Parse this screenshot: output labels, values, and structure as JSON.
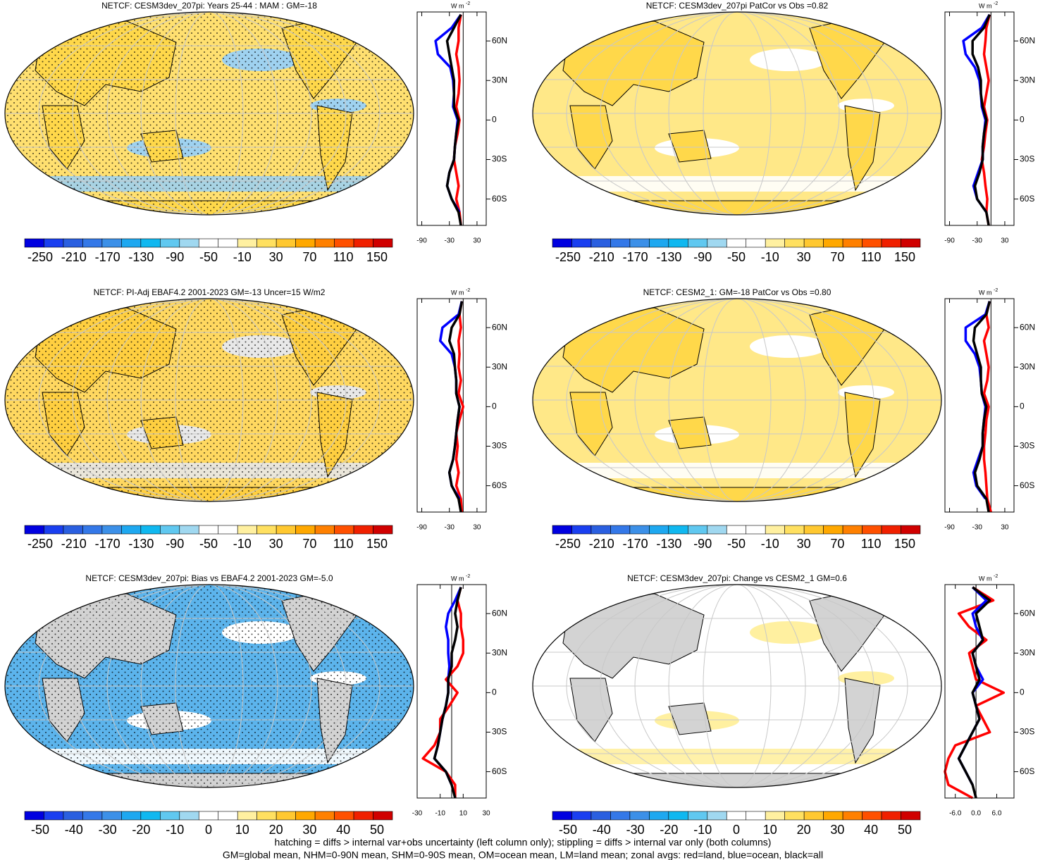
{
  "chart_data": [
    {
      "type": "zonal",
      "title": "NETCF: CESM3dev_207pi: Years 25-44 : MAM : GM=-18",
      "units": [
        "W m",
        "-2"
      ],
      "colorbar": {
        "ticks": [
          -250,
          -210,
          -170,
          -130,
          -90,
          -50,
          -10,
          30,
          70,
          110,
          150
        ],
        "colors": [
          "#0000e0",
          "#1a3ff0",
          "#2a5fe0",
          "#3478e8",
          "#3c90e8",
          "#1ea8f0",
          "#10b8f0",
          "#60c8f0",
          "#a0d8f0",
          "#ffffff",
          "#ffffff",
          "#fff0a0",
          "#ffe060",
          "#ffc830",
          "#ffa800",
          "#ff8000",
          "#ff5000",
          "#f02000",
          "#d00000"
        ]
      },
      "y": [
        -80,
        -70,
        -60,
        -50,
        -40,
        -30,
        -20,
        -10,
        0,
        10,
        20,
        30,
        40,
        50,
        60,
        70,
        80
      ],
      "ylim": [
        -80,
        82
      ],
      "yticks": [
        {
          "value": 60,
          "label": "60N"
        },
        {
          "value": 30,
          "label": "30N"
        },
        0,
        {
          "value": -30,
          "label": "30S"
        },
        {
          "value": -60,
          "label": "60S"
        }
      ],
      "xlim": [
        -100,
        50
      ],
      "xticks": [
        -90,
        -30,
        30
      ],
      "series": [
        {
          "color": "#ff0000",
          "values": [
            -5,
            -8,
            -15,
            -10,
            -15,
            -20,
            -18,
            -12,
            -8,
            -15,
            -10,
            -8,
            -10,
            -15,
            -10,
            -10,
            -5
          ]
        },
        {
          "color": "#0000ff",
          "values": [
            null,
            -8,
            -25,
            -35,
            -30,
            -20,
            -18,
            -15,
            -12,
            -22,
            -20,
            -22,
            -28,
            -55,
            -60,
            -25,
            -5
          ]
        },
        {
          "color": "#000000",
          "values": [
            -5,
            -10,
            -25,
            -35,
            -30,
            -20,
            -18,
            -15,
            -10,
            -20,
            -20,
            -20,
            -25,
            -30,
            -35,
            -20,
            -5
          ]
        }
      ]
    },
    {
      "type": "zonal",
      "title": "NETCF: CESM3dev_207pi PatCor vs Obs =0.82",
      "units": [
        "W m",
        "-2"
      ],
      "colorbar": {
        "ticks": [
          -250,
          -210,
          -170,
          -130,
          -90,
          -50,
          -10,
          30,
          70,
          110,
          150
        ],
        "colors": [
          "#0000e0",
          "#1a3ff0",
          "#2a5fe0",
          "#3478e8",
          "#3c90e8",
          "#1ea8f0",
          "#10b8f0",
          "#60c8f0",
          "#a0d8f0",
          "#ffffff",
          "#ffffff",
          "#fff0a0",
          "#ffe060",
          "#ffc830",
          "#ffa800",
          "#ff8000",
          "#ff5000",
          "#f02000",
          "#d00000"
        ]
      },
      "y": [
        -80,
        -70,
        -60,
        -50,
        -40,
        -30,
        -20,
        -10,
        0,
        10,
        20,
        30,
        40,
        50,
        60,
        70,
        80
      ],
      "ylim": [
        -80,
        82
      ],
      "yticks": [
        {
          "value": 60,
          "label": "60N"
        },
        {
          "value": 30,
          "label": "30N"
        },
        0,
        {
          "value": -30,
          "label": "30S"
        },
        {
          "value": -60,
          "label": "60S"
        }
      ],
      "xlim": [
        -100,
        50
      ],
      "xticks": [
        -90,
        -30,
        30
      ],
      "series": [
        {
          "color": "#ff0000",
          "values": [
            -5,
            -10,
            -8,
            -12,
            -15,
            -20,
            -15,
            -12,
            -8,
            -15,
            -10,
            -5,
            -10,
            -15,
            -12,
            -10,
            -3
          ]
        },
        {
          "color": "#0000ff",
          "values": [
            null,
            -10,
            -30,
            -38,
            -28,
            -18,
            -18,
            -15,
            -12,
            -20,
            -22,
            -25,
            -35,
            -55,
            -60,
            -20,
            -3
          ]
        },
        {
          "color": "#000000",
          "values": [
            -5,
            -10,
            -30,
            -35,
            -25,
            -18,
            -18,
            -15,
            -10,
            -18,
            -22,
            -22,
            -28,
            -40,
            -40,
            -15,
            -3
          ]
        }
      ]
    },
    {
      "type": "zonal",
      "title": "NETCF: PI-Adj EBAF4.2 2001-2023 GM=-13 Uncer=15 W/m2",
      "units": [
        "W m",
        "-2"
      ],
      "colorbar": {
        "ticks": [
          -250,
          -210,
          -170,
          -130,
          -90,
          -50,
          -10,
          30,
          70,
          110,
          150
        ],
        "colors": [
          "#0000e0",
          "#1a3ff0",
          "#2a5fe0",
          "#3478e8",
          "#3c90e8",
          "#1ea8f0",
          "#10b8f0",
          "#60c8f0",
          "#a0d8f0",
          "#ffffff",
          "#ffffff",
          "#fff0a0",
          "#ffe060",
          "#ffc830",
          "#ffa800",
          "#ff8000",
          "#ff5000",
          "#f02000",
          "#d00000"
        ]
      },
      "y": [
        -80,
        -70,
        -60,
        -50,
        -40,
        -30,
        -20,
        -10,
        0,
        10,
        20,
        30,
        40,
        50,
        60,
        70,
        80
      ],
      "ylim": [
        -80,
        82
      ],
      "yticks": [
        {
          "value": 60,
          "label": "60N"
        },
        {
          "value": 30,
          "label": "30N"
        },
        0,
        {
          "value": -30,
          "label": "30S"
        },
        {
          "value": -60,
          "label": "60S"
        }
      ],
      "xlim": [
        -100,
        50
      ],
      "xticks": [
        -90,
        -30,
        30
      ],
      "series": [
        {
          "color": "#ff0000",
          "values": [
            -3,
            -5,
            -15,
            -10,
            -15,
            -12,
            -15,
            -8,
            0,
            -10,
            -5,
            -10,
            -8,
            -10,
            -5,
            -8,
            -3
          ]
        },
        {
          "color": "#0000ff",
          "values": [
            null,
            -8,
            -25,
            -30,
            -22,
            -18,
            -15,
            -12,
            -8,
            -15,
            -15,
            -18,
            -25,
            -50,
            -45,
            -10,
            -3
          ]
        },
        {
          "color": "#000000",
          "values": [
            -5,
            -10,
            -25,
            -30,
            -22,
            -18,
            -15,
            -12,
            -8,
            -15,
            -15,
            -18,
            -20,
            -30,
            -25,
            -8,
            -3
          ]
        }
      ]
    },
    {
      "type": "zonal",
      "title": "NETCF: CESM2_1: GM=-18 PatCor vs Obs =0.80",
      "units": [
        "W m",
        "-2"
      ],
      "colorbar": {
        "ticks": [
          -250,
          -210,
          -170,
          -130,
          -90,
          -50,
          -10,
          30,
          70,
          110,
          150
        ],
        "colors": [
          "#0000e0",
          "#1a3ff0",
          "#2a5fe0",
          "#3478e8",
          "#3c90e8",
          "#1ea8f0",
          "#10b8f0",
          "#60c8f0",
          "#a0d8f0",
          "#ffffff",
          "#ffffff",
          "#fff0a0",
          "#ffe060",
          "#ffc830",
          "#ffa800",
          "#ff8000",
          "#ff5000",
          "#f02000",
          "#d00000"
        ]
      },
      "y": [
        -80,
        -70,
        -60,
        -50,
        -40,
        -30,
        -20,
        -10,
        0,
        10,
        20,
        30,
        40,
        50,
        60,
        70,
        80
      ],
      "ylim": [
        -80,
        82
      ],
      "yticks": [
        {
          "value": 60,
          "label": "60N"
        },
        {
          "value": 30,
          "label": "30N"
        },
        0,
        {
          "value": -30,
          "label": "30S"
        },
        {
          "value": -60,
          "label": "60S"
        }
      ],
      "xlim": [
        -100,
        50
      ],
      "xticks": [
        -90,
        -30,
        30
      ],
      "series": [
        {
          "color": "#ff0000",
          "values": [
            0,
            -8,
            -10,
            -12,
            -15,
            -15,
            -12,
            -10,
            -5,
            -15,
            -8,
            -5,
            -10,
            -15,
            -5,
            -10,
            -3
          ]
        },
        {
          "color": "#0000ff",
          "values": [
            null,
            -12,
            -32,
            -38,
            -28,
            -18,
            -18,
            -15,
            -12,
            -20,
            -22,
            -25,
            -35,
            -55,
            -55,
            -12,
            -3
          ]
        },
        {
          "color": "#000000",
          "values": [
            -5,
            -10,
            -30,
            -35,
            -25,
            -18,
            -18,
            -15,
            -10,
            -20,
            -22,
            -22,
            -30,
            -38,
            -35,
            -10,
            -3
          ]
        }
      ]
    },
    {
      "type": "zonal",
      "title": "NETCF: CESM3dev_207pi: Bias vs EBAF4.2 2001-2023 GM=-5.0",
      "units": [
        "W m",
        "-2"
      ],
      "colorbar": {
        "ticks": [
          -50,
          -40,
          -30,
          -20,
          -10,
          0,
          10,
          20,
          30,
          40,
          50
        ],
        "colors": [
          "#0000e0",
          "#1a3ff0",
          "#2a5fe0",
          "#3478e8",
          "#3c90e8",
          "#1ea8f0",
          "#10b8f0",
          "#60c8f0",
          "#a0d8f0",
          "#ffffff",
          "#ffffff",
          "#fff0a0",
          "#ffe060",
          "#ffc830",
          "#ffa800",
          "#ff8000",
          "#ff5000",
          "#f02000",
          "#d00000"
        ]
      },
      "y": [
        -80,
        -70,
        -60,
        -50,
        -40,
        -30,
        -20,
        -10,
        0,
        10,
        20,
        30,
        40,
        50,
        60,
        70,
        80
      ],
      "ylim": [
        -80,
        82
      ],
      "yticks": [
        {
          "value": 60,
          "label": "60N"
        },
        {
          "value": 30,
          "label": "30N"
        },
        0,
        {
          "value": -30,
          "label": "30S"
        },
        {
          "value": -60,
          "label": "60S"
        }
      ],
      "xlim": [
        -30,
        30
      ],
      "xticks": [
        -30,
        -10,
        10,
        30
      ],
      "series": [
        {
          "color": "#ff0000",
          "values": [
            3,
            3,
            -5,
            -25,
            -15,
            -10,
            -10,
            -2,
            5,
            -5,
            5,
            10,
            10,
            8,
            8,
            5,
            8
          ]
        },
        {
          "color": "#0000ff",
          "values": [
            null,
            0,
            -5,
            -15,
            -12,
            -10,
            -8,
            -5,
            -3,
            -3,
            -2,
            -3,
            -3,
            -5,
            -3,
            3,
            8
          ]
        },
        {
          "color": "#000000",
          "values": [
            3,
            0,
            -5,
            -15,
            -12,
            -10,
            -8,
            -5,
            -3,
            -3,
            0,
            0,
            3,
            5,
            3,
            5,
            8
          ]
        }
      ]
    },
    {
      "type": "zonal",
      "title": "NETCF: CESM3dev_207pi: Change vs CESM2_1 GM=0.6",
      "units": [
        "W m",
        "-2"
      ],
      "colorbar": {
        "ticks": [
          -50,
          -40,
          -30,
          -20,
          -10,
          0,
          10,
          20,
          30,
          40,
          50
        ],
        "colors": [
          "#0000e0",
          "#1a3ff0",
          "#2a5fe0",
          "#3478e8",
          "#3c90e8",
          "#1ea8f0",
          "#10b8f0",
          "#60c8f0",
          "#a0d8f0",
          "#ffffff",
          "#ffffff",
          "#fff0a0",
          "#ffe060",
          "#ffc830",
          "#ffa800",
          "#ff8000",
          "#ff5000",
          "#f02000",
          "#d00000"
        ]
      },
      "y": [
        -80,
        -70,
        -60,
        -50,
        -40,
        -30,
        -20,
        -10,
        0,
        10,
        20,
        30,
        40,
        50,
        60,
        70,
        80
      ],
      "ylim": [
        -80,
        82
      ],
      "yticks": [
        {
          "value": 60,
          "label": "60N"
        },
        {
          "value": 30,
          "label": "30N"
        },
        0,
        {
          "value": -30,
          "label": "30S"
        },
        {
          "value": -60,
          "label": "60S"
        }
      ],
      "xlim": [
        -9,
        11
      ],
      "xticks": [
        {
          "value": -6,
          "label": "-6.0"
        },
        {
          "value": 0,
          "label": "0.0"
        },
        {
          "value": 6,
          "label": "6.0"
        }
      ],
      "series": [
        {
          "color": "#ff0000",
          "values": [
            -1,
            -8,
            -9,
            -8,
            -6,
            4,
            2,
            0,
            8,
            0,
            -1,
            -2,
            3,
            -2,
            -5,
            5,
            -1
          ]
        },
        {
          "color": "#0000ff",
          "values": [
            null,
            -1,
            -3,
            -5,
            -3,
            -1,
            1,
            0,
            -1,
            2,
            0,
            -1,
            2,
            0,
            -1,
            3,
            -1
          ]
        },
        {
          "color": "#000000",
          "values": [
            0,
            -1,
            -3,
            -5,
            -3,
            -1,
            1,
            0,
            -1,
            1,
            0,
            -1,
            2,
            1,
            0,
            4,
            -1
          ]
        }
      ]
    }
  ],
  "footer": [
    "hatching = diffs > internal var+obs uncertainty (left column only); stippling = diffs > internal var only (both columns)",
    "GM=global mean, NHM=0-90N mean, SHM=0-90S mean, OM=ocean mean, LM=land mean; zonal avgs: red=land, blue=ocean, black=all"
  ]
}
